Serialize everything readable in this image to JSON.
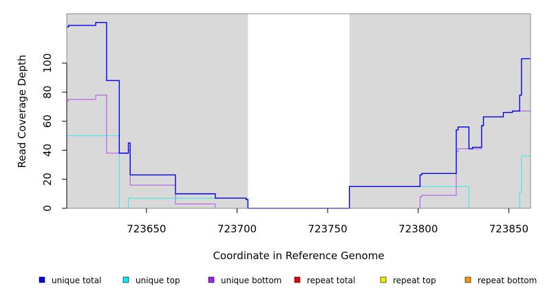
{
  "chart_data": {
    "type": "line",
    "xlabel": "Coordinate in Reference Genome",
    "ylabel": "Read Coverage Depth",
    "xlim": [
      723606,
      723862
    ],
    "ylim": [
      0,
      134
    ],
    "x_ticks": [
      723650,
      723700,
      723750,
      723800,
      723850
    ],
    "x_tick_labels": [
      "723650",
      "723700",
      "723750",
      "723800",
      "723850"
    ],
    "y_ticks": [
      0,
      20,
      40,
      60,
      80,
      100
    ],
    "y_tick_labels": [
      "0",
      "20",
      "40",
      "60",
      "80",
      "100"
    ],
    "shaded_regions": [
      {
        "x0": 723606,
        "x1": 723706,
        "color": "#d9d9d9"
      },
      {
        "x0": 723762,
        "x1": 723862,
        "color": "#d9d9d9"
      }
    ],
    "grid": false,
    "legend_position": "bottom",
    "series": [
      {
        "name": "unique total",
        "color": "#0000ee",
        "points": [
          [
            723606,
            125
          ],
          [
            723607,
            125
          ],
          [
            723607,
            126
          ],
          [
            723622,
            126
          ],
          [
            723622,
            128
          ],
          [
            723628,
            128
          ],
          [
            723628,
            88
          ],
          [
            723635,
            88
          ],
          [
            723635,
            38
          ],
          [
            723640,
            38
          ],
          [
            723640,
            45
          ],
          [
            723641,
            45
          ],
          [
            723641,
            23
          ],
          [
            723666,
            23
          ],
          [
            723666,
            10
          ],
          [
            723688,
            10
          ],
          [
            723688,
            7
          ],
          [
            723705,
            7
          ],
          [
            723705,
            6
          ],
          [
            723706,
            6
          ],
          [
            723706,
            0
          ],
          [
            723762,
            0
          ],
          [
            723762,
            15
          ],
          [
            723801,
            15
          ],
          [
            723801,
            23
          ],
          [
            723802,
            23
          ],
          [
            723802,
            24
          ],
          [
            723821,
            24
          ],
          [
            723821,
            54
          ],
          [
            723822,
            54
          ],
          [
            723822,
            56
          ],
          [
            723828,
            56
          ],
          [
            723828,
            41
          ],
          [
            723830,
            41
          ],
          [
            723830,
            42
          ],
          [
            723835,
            42
          ],
          [
            723835,
            57
          ],
          [
            723836,
            57
          ],
          [
            723836,
            63
          ],
          [
            723847,
            63
          ],
          [
            723847,
            66
          ],
          [
            723852,
            66
          ],
          [
            723852,
            67
          ],
          [
            723856,
            67
          ],
          [
            723856,
            78
          ],
          [
            723857,
            78
          ],
          [
            723857,
            103
          ],
          [
            723862,
            103
          ]
        ]
      },
      {
        "name": "unique top",
        "color": "#00eeee",
        "points": [
          [
            723606,
            50
          ],
          [
            723635,
            50
          ],
          [
            723635,
            0
          ],
          [
            723640,
            0
          ],
          [
            723640,
            7
          ],
          [
            723706,
            7
          ],
          [
            723706,
            0
          ],
          [
            723762,
            0
          ],
          [
            723762,
            15
          ],
          [
            723828,
            15
          ],
          [
            723828,
            0
          ],
          [
            723856,
            0
          ],
          [
            723856,
            11
          ],
          [
            723857,
            11
          ],
          [
            723857,
            36
          ],
          [
            723862,
            36
          ]
        ]
      },
      {
        "name": "unique bottom",
        "color": "#a020f0",
        "points": [
          [
            723606,
            74
          ],
          [
            723607,
            74
          ],
          [
            723607,
            75
          ],
          [
            723622,
            75
          ],
          [
            723622,
            78
          ],
          [
            723628,
            78
          ],
          [
            723628,
            38
          ],
          [
            723640,
            38
          ],
          [
            723640,
            40
          ],
          [
            723641,
            40
          ],
          [
            723641,
            16
          ],
          [
            723666,
            16
          ],
          [
            723666,
            3
          ],
          [
            723688,
            3
          ],
          [
            723688,
            0
          ],
          [
            723801,
            0
          ],
          [
            723801,
            8
          ],
          [
            723802,
            8
          ],
          [
            723802,
            9
          ],
          [
            723821,
            9
          ],
          [
            723821,
            39
          ],
          [
            723822,
            39
          ],
          [
            723822,
            41
          ],
          [
            723835,
            41
          ],
          [
            723835,
            57
          ],
          [
            723836,
            57
          ],
          [
            723836,
            63
          ],
          [
            723847,
            63
          ],
          [
            723847,
            66
          ],
          [
            723852,
            66
          ],
          [
            723852,
            67
          ],
          [
            723862,
            67
          ]
        ]
      },
      {
        "name": "repeat total",
        "color": "#ee0000",
        "points": [
          [
            723606,
            0
          ],
          [
            723862,
            0
          ]
        ]
      },
      {
        "name": "repeat top",
        "color": "#eeee00",
        "points": [
          [
            723606,
            0
          ],
          [
            723862,
            0
          ]
        ]
      },
      {
        "name": "repeat bottom",
        "color": "#ee9a00",
        "points": [
          [
            723606,
            0
          ],
          [
            723862,
            0
          ]
        ]
      }
    ]
  }
}
